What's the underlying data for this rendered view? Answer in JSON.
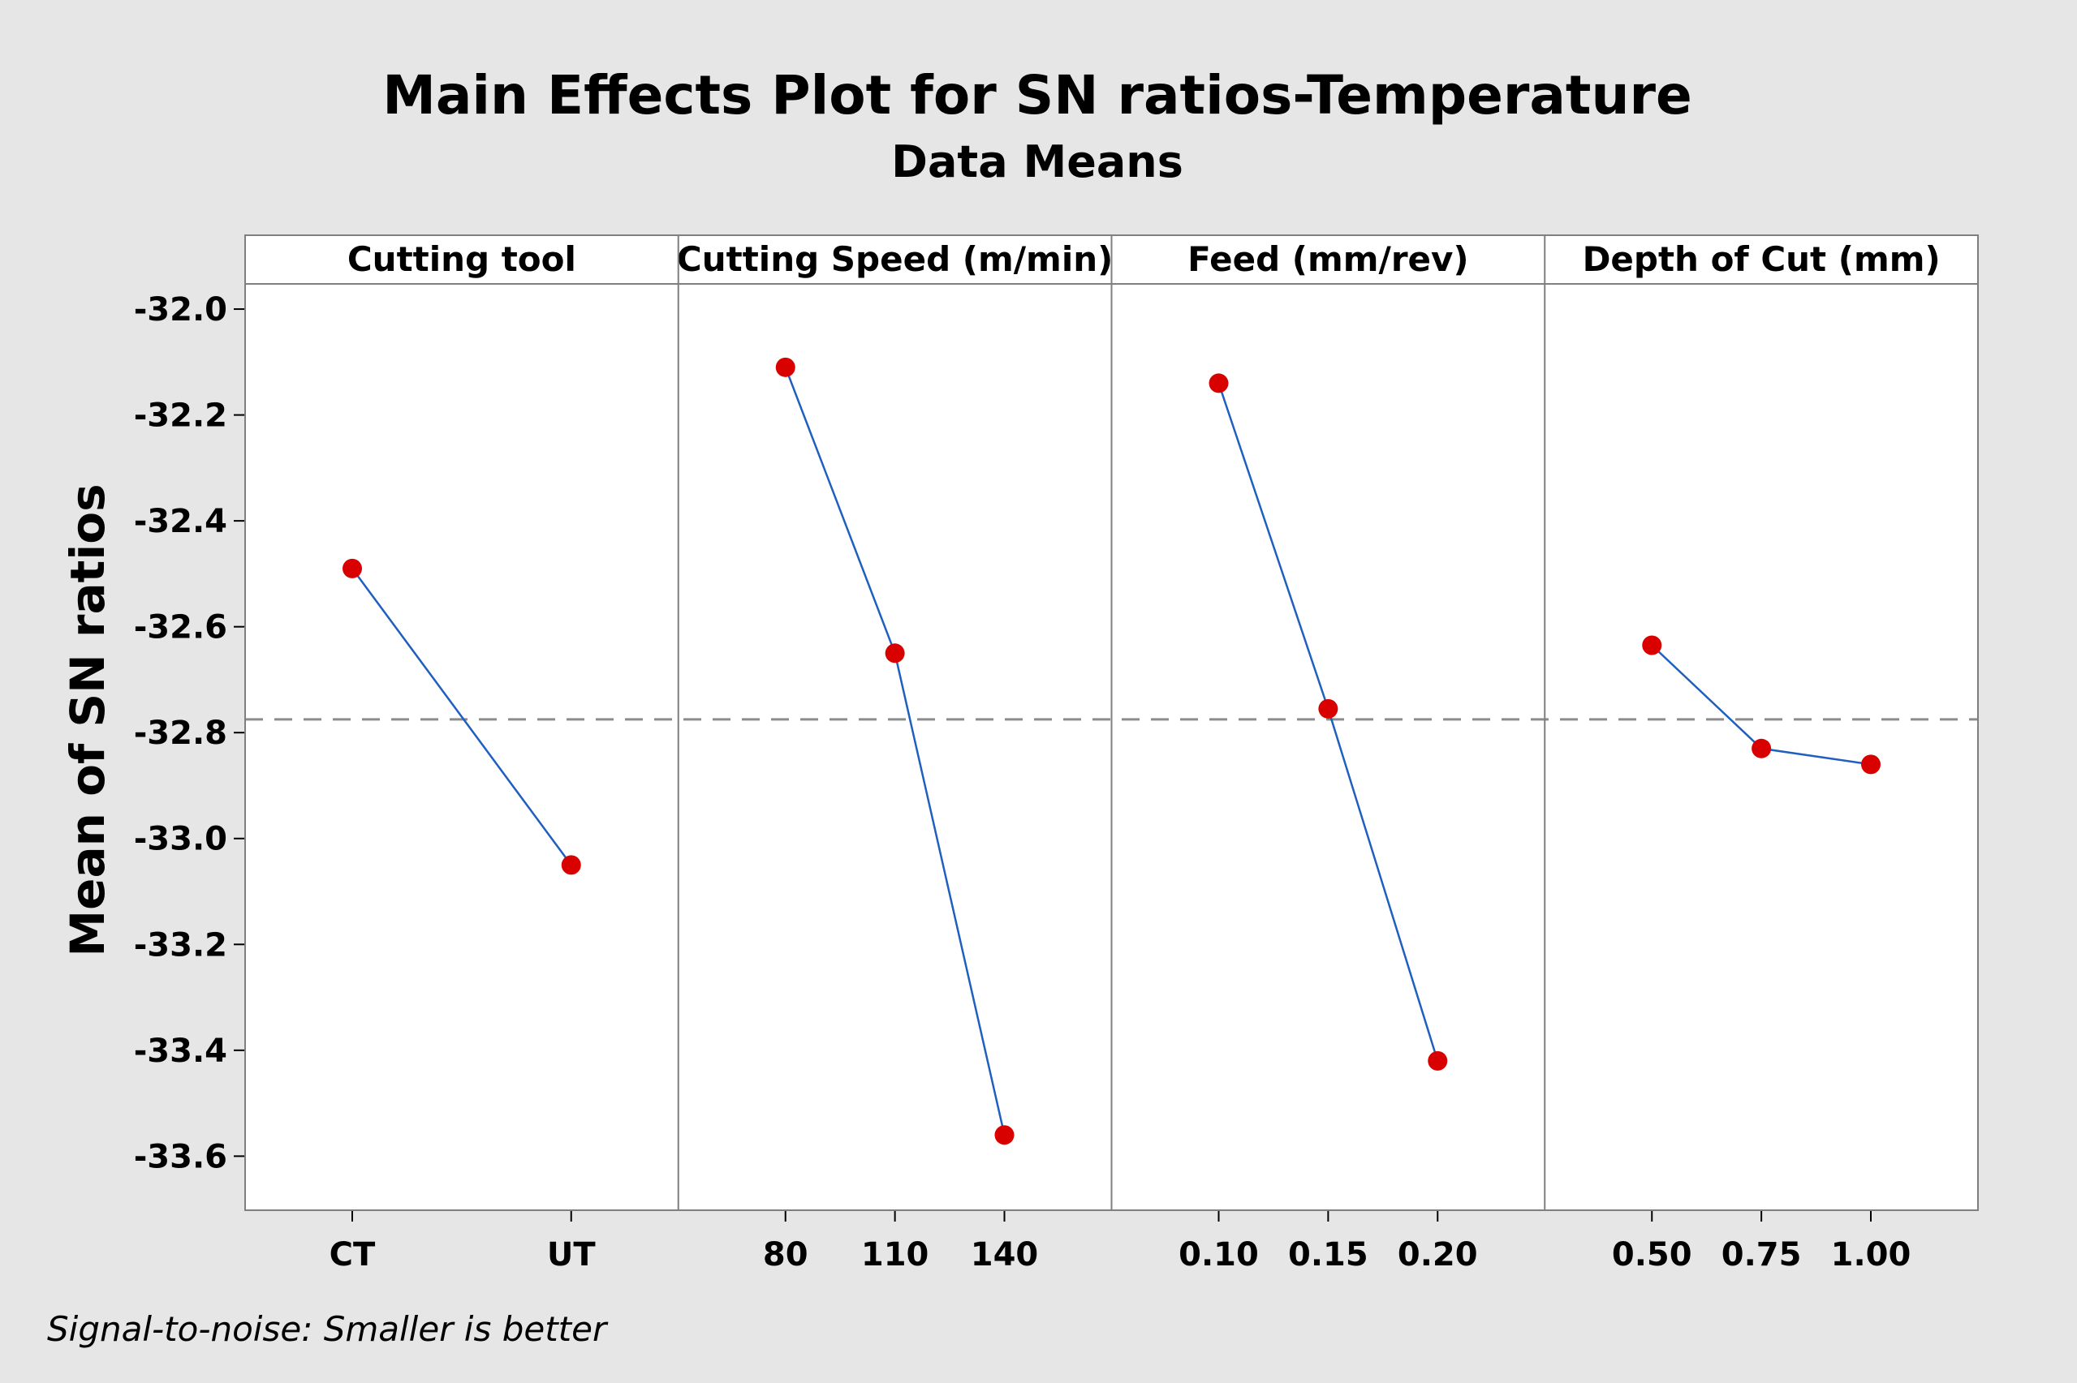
{
  "chart_data": {
    "type": "line",
    "title": "Main Effects Plot for SN ratios-Temperature",
    "subtitle": "Data Means",
    "ylabel": "Mean of SN ratios",
    "ylim": [
      -33.65,
      -31.98
    ],
    "yticks": [
      -32.0,
      -32.2,
      -32.4,
      -32.6,
      -32.8,
      -33.0,
      -33.2,
      -33.4,
      -33.6
    ],
    "ytick_labels": [
      "-32.0",
      "-32.2",
      "-32.4",
      "-32.6",
      "-32.8",
      "-33.0",
      "-33.2",
      "-33.4",
      "-33.6"
    ],
    "reference_line": -32.775,
    "grid": false,
    "colors": {
      "background": "#e6e6e6",
      "plot": "#ffffff",
      "line": "#1f5fbf",
      "marker": "#d90000",
      "reference": "#8c8c8c",
      "frame": "#7f7f7f"
    },
    "panels": [
      {
        "name": "Cutting tool",
        "categories": [
          "CT",
          "UT"
        ],
        "values": [
          -32.49,
          -33.05
        ]
      },
      {
        "name": "Cutting Speed (m/min)",
        "categories": [
          "80",
          "110",
          "140"
        ],
        "values": [
          -32.11,
          -32.65,
          -33.56
        ]
      },
      {
        "name": "Feed (mm/rev)",
        "categories": [
          "0.10",
          "0.15",
          "0.20"
        ],
        "values": [
          -32.14,
          -32.755,
          -33.42
        ]
      },
      {
        "name": "Depth of Cut (mm)",
        "categories": [
          "0.50",
          "0.75",
          "1.00"
        ],
        "values": [
          -32.635,
          -32.83,
          -32.86
        ]
      }
    ]
  },
  "footnote": "Signal-to-noise: Smaller is better"
}
